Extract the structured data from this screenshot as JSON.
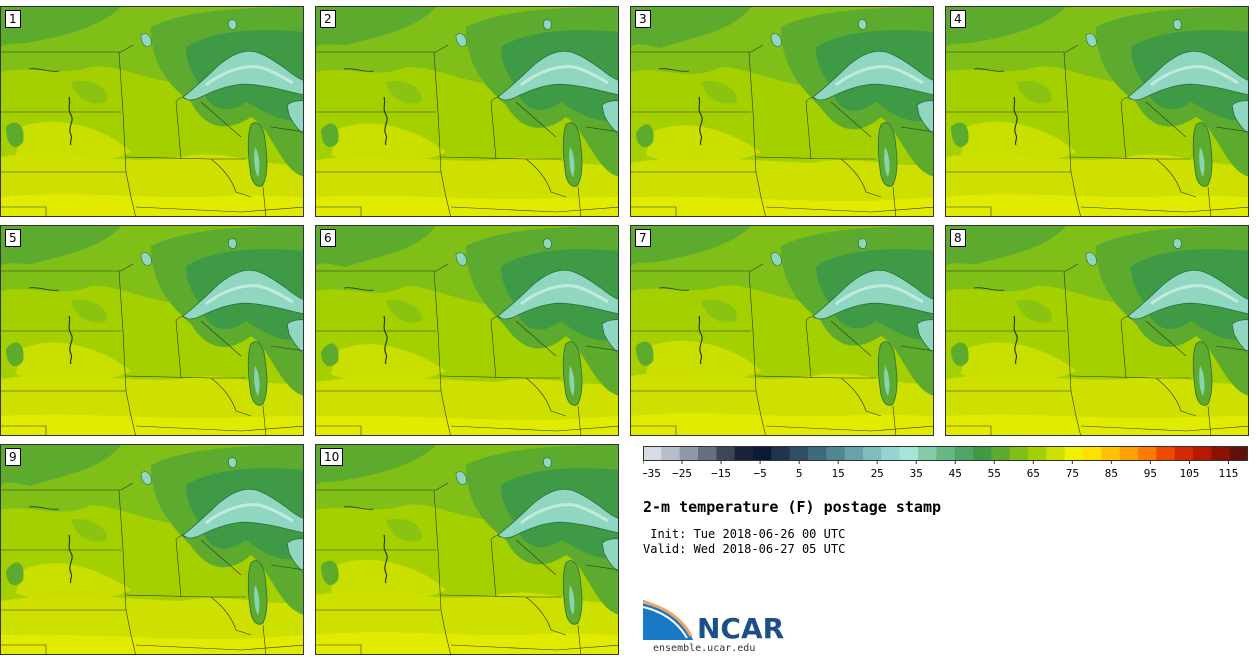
{
  "panels": [
    {
      "label": "1"
    },
    {
      "label": "2"
    },
    {
      "label": "3"
    },
    {
      "label": "4"
    },
    {
      "label": "5"
    },
    {
      "label": "6"
    },
    {
      "label": "7"
    },
    {
      "label": "8"
    },
    {
      "label": "9"
    },
    {
      "label": "10"
    }
  ],
  "title": "2-m temperature (F) postage stamp",
  "init": " Init: Tue 2018-06-26 00 UTC",
  "valid": "Valid: Wed 2018-06-27 05 UTC",
  "logo": {
    "text": "NCAR",
    "url": "ensemble.ucar.edu"
  },
  "colorbar": {
    "units": "F",
    "min": -35,
    "max": 120,
    "step": 5,
    "tick_labels": [
      "-35",
      "-25",
      "-15",
      "-5",
      "5",
      "15",
      "25",
      "35",
      "45",
      "55",
      "65",
      "75",
      "85",
      "95",
      "105",
      "115"
    ],
    "colors": [
      "#d7dde6",
      "#b7bec9",
      "#8f98a6",
      "#67707f",
      "#3d4656",
      "#18233a",
      "#0c1a33",
      "#21354a",
      "#2f4f62",
      "#3e6a7a",
      "#528691",
      "#67a2a8",
      "#7fbdbd",
      "#94d6cf",
      "#a3e5d6",
      "#83cca5",
      "#66b784",
      "#4ea566",
      "#3f9a45",
      "#5caa2e",
      "#7fbf18",
      "#a5d000",
      "#cde000",
      "#f0f000",
      "#ffe000",
      "#ffc000",
      "#ffa000",
      "#ff7a00",
      "#f04800",
      "#d62800",
      "#b81800",
      "#8e1000",
      "#5e1208"
    ]
  },
  "map_colors": {
    "lake": "#8fd7c1",
    "lake_light": "#c6eee0",
    "cool_green": "#3f9a45",
    "mid_green": "#5caa2e",
    "light_green": "#7fbf18",
    "yellow_green": "#a5d000",
    "yellow": "#cde000",
    "bright_yellow": "#e6ee00"
  }
}
